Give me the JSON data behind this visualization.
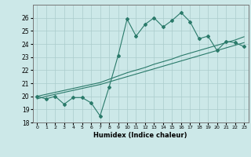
{
  "title": "",
  "xlabel": "Humidex (Indice chaleur)",
  "x_data": [
    0,
    1,
    2,
    3,
    4,
    5,
    6,
    7,
    8,
    9,
    10,
    11,
    12,
    13,
    14,
    15,
    16,
    17,
    18,
    19,
    20,
    21,
    22,
    23
  ],
  "y_main": [
    20.0,
    19.8,
    20.0,
    19.4,
    19.9,
    19.9,
    19.5,
    18.5,
    20.7,
    23.1,
    25.9,
    24.6,
    25.5,
    26.0,
    25.3,
    25.8,
    26.4,
    25.7,
    24.4,
    24.6,
    23.5,
    24.2,
    24.1,
    23.8
  ],
  "y_trend1": [
    19.8,
    20.0,
    20.15,
    20.3,
    20.45,
    20.6,
    20.75,
    20.9,
    21.1,
    21.3,
    21.5,
    21.7,
    21.9,
    22.1,
    22.3,
    22.5,
    22.7,
    22.9,
    23.1,
    23.3,
    23.5,
    23.7,
    23.9,
    24.1
  ],
  "y_trend2": [
    20.0,
    20.15,
    20.3,
    20.45,
    20.6,
    20.75,
    20.9,
    21.05,
    21.3,
    21.55,
    21.8,
    22.0,
    22.2,
    22.45,
    22.65,
    22.85,
    23.1,
    23.3,
    23.5,
    23.7,
    23.9,
    24.1,
    24.3,
    24.55
  ],
  "line_color": "#2a7a6a",
  "bg_color": "#cce8e8",
  "grid_color": "#aacccc",
  "ylim": [
    18,
    27
  ],
  "yticks": [
    18,
    19,
    20,
    21,
    22,
    23,
    24,
    25,
    26
  ],
  "xlim": [
    -0.5,
    23.5
  ],
  "xticks": [
    0,
    1,
    2,
    3,
    4,
    5,
    6,
    7,
    8,
    9,
    10,
    11,
    12,
    13,
    14,
    15,
    16,
    17,
    18,
    19,
    20,
    21,
    22,
    23
  ]
}
